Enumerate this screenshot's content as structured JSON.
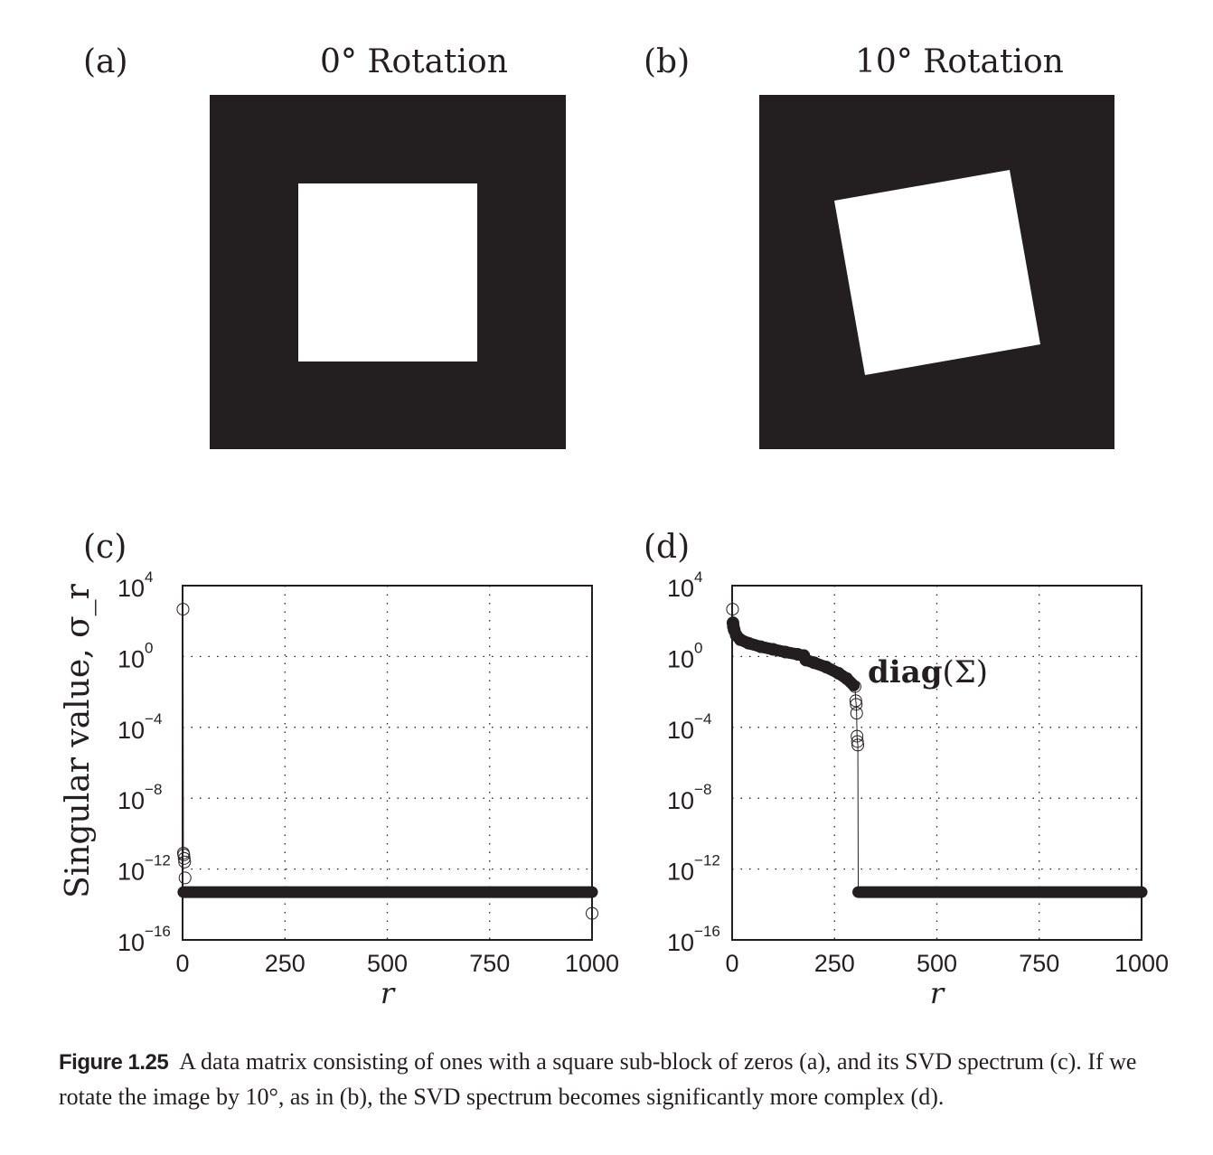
{
  "panels": {
    "a": {
      "label": "(a)",
      "title": "0° Rotation",
      "rotation_deg": 0
    },
    "b": {
      "label": "(b)",
      "title": "10° Rotation",
      "rotation_deg": 10
    },
    "c": {
      "label": "(c)"
    },
    "d": {
      "label": "(d)"
    }
  },
  "caption": {
    "figure_label": "Figure 1.25",
    "text": "A data matrix consisting of ones with a square sub-block of zeros (a), and its SVD spectrum (c). If we rotate the image by 10°, as in (b), the SVD spectrum becomes significantly more complex (d)."
  },
  "chart_data": [
    {
      "type": "scatter",
      "panel": "c",
      "xlabel": "r",
      "ylabel": "Singular value, σ_r",
      "xlim": [
        0,
        1000
      ],
      "ylim_log10": [
        -16,
        4
      ],
      "yscale": "log",
      "grid": true,
      "xticks": [
        "0",
        "250",
        "500",
        "750",
        "1000"
      ],
      "yticks": [
        {
          "base": "10",
          "exp": "4"
        },
        {
          "base": "10",
          "exp": "0"
        },
        {
          "base": "10",
          "exp": "−4"
        },
        {
          "base": "10",
          "exp": "−8"
        },
        {
          "base": "10",
          "exp": "−12"
        },
        {
          "base": "10",
          "exp": "−16"
        }
      ],
      "points_log10": [
        [
          1,
          2.67
        ],
        [
          2,
          -11.1
        ],
        [
          3,
          -11.2
        ],
        [
          4,
          -11.4
        ],
        [
          5,
          -11.6
        ],
        [
          6,
          -12.5
        ],
        [
          1000,
          -14.5
        ]
      ],
      "band": {
        "x_start": 2,
        "x_end": 1000,
        "log10_value": -13.3
      }
    },
    {
      "type": "scatter",
      "panel": "d",
      "xlabel": "r",
      "ylabel": "",
      "annotation": {
        "bold": "diag",
        "rest": "(Σ)"
      },
      "xlim": [
        0,
        1000
      ],
      "ylim_log10": [
        -16,
        4
      ],
      "yscale": "log",
      "grid": true,
      "xticks": [
        "0",
        "250",
        "500",
        "750",
        "1000"
      ],
      "yticks": [
        {
          "base": "10",
          "exp": "4"
        },
        {
          "base": "10",
          "exp": "0"
        },
        {
          "base": "10",
          "exp": "−4"
        },
        {
          "base": "10",
          "exp": "−8"
        },
        {
          "base": "10",
          "exp": "−12"
        },
        {
          "base": "10",
          "exp": "−16"
        }
      ],
      "points_log10": [
        [
          1,
          2.67
        ],
        [
          2,
          1.9
        ],
        [
          3,
          1.7
        ],
        [
          5,
          1.5
        ],
        [
          10,
          1.2
        ],
        [
          20,
          0.95
        ],
        [
          40,
          0.75
        ],
        [
          70,
          0.55
        ],
        [
          100,
          0.4
        ],
        [
          130,
          0.25
        ],
        [
          160,
          0.12
        ],
        [
          175,
          0.05
        ],
        [
          180,
          -0.2
        ],
        [
          200,
          -0.35
        ],
        [
          230,
          -0.6
        ],
        [
          260,
          -0.95
        ],
        [
          280,
          -1.25
        ],
        [
          300,
          -1.7
        ],
        [
          302,
          -2.5
        ],
        [
          303,
          -2.7
        ],
        [
          304,
          -3.2
        ],
        [
          305,
          -4.5
        ],
        [
          306,
          -4.8
        ],
        [
          307,
          -5.0
        ]
      ],
      "band": {
        "x_start": 308,
        "x_end": 1000,
        "log10_value": -13.3
      }
    }
  ]
}
